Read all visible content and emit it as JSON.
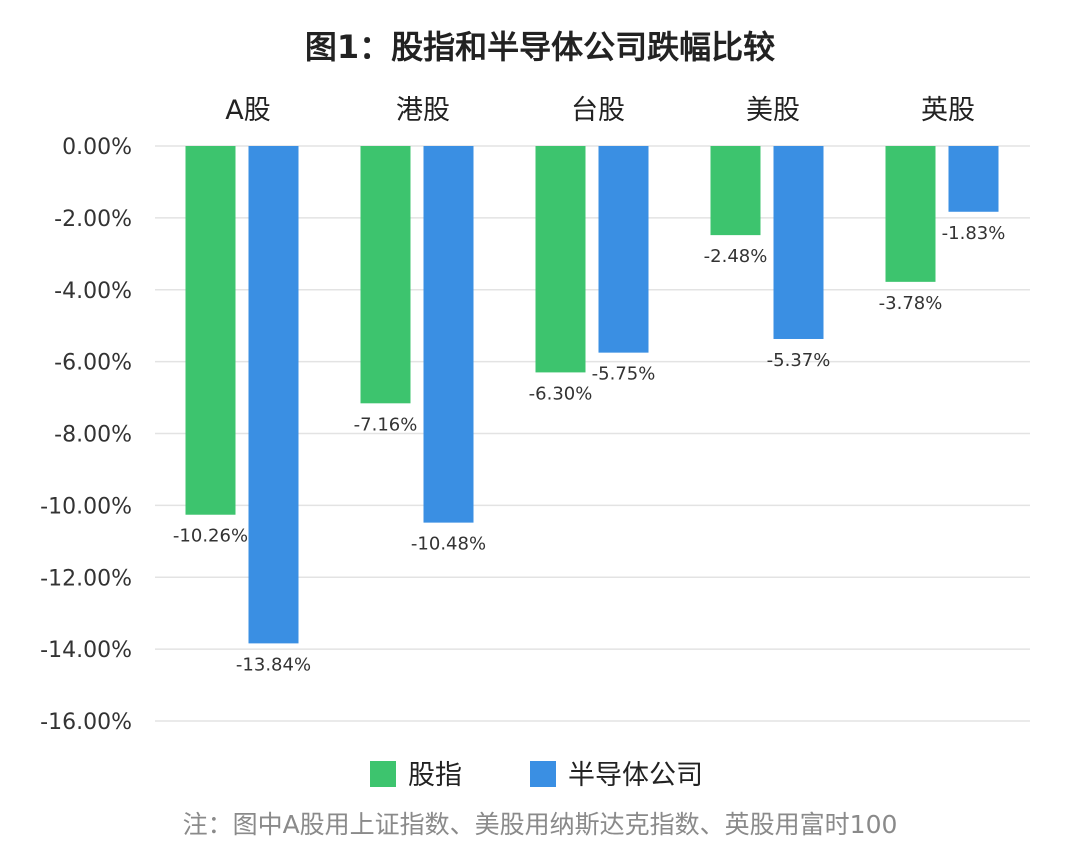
{
  "chart_data": {
    "type": "bar",
    "title": "图1：股指和半导体公司跌幅比较",
    "categories": [
      "A股",
      "港股",
      "台股",
      "美股",
      "英股"
    ],
    "series": [
      {
        "name": "股指",
        "color": "#3DC46E",
        "values": [
          -10.26,
          -7.16,
          -6.3,
          -2.48,
          -3.78
        ],
        "labels": [
          "-10.26%",
          "-7.16%",
          "-6.30%",
          "-2.48%",
          "-3.78%"
        ]
      },
      {
        "name": "半导体公司",
        "color": "#3A8FE3",
        "values": [
          -13.84,
          -10.48,
          -5.75,
          -5.37,
          -1.83
        ],
        "labels": [
          "-13.84%",
          "-10.48%",
          "-5.75%",
          "-5.37%",
          "-1.83%"
        ]
      }
    ],
    "ylim": [
      -16,
      0
    ],
    "yticks": [
      0,
      -2,
      -4,
      -6,
      -8,
      -10,
      -12,
      -14,
      -16
    ],
    "ytick_labels": [
      "0.00%",
      "-2.00%",
      "-4.00%",
      "-6.00%",
      "-8.00%",
      "-10.00%",
      "-12.00%",
      "-14.00%",
      "-16.00%"
    ],
    "xaxis_position": "top",
    "grid": true,
    "legend_position": "bottom",
    "footnote": "注：图中A股用上证指数、美股用纳斯达克指数、英股用富时100"
  }
}
